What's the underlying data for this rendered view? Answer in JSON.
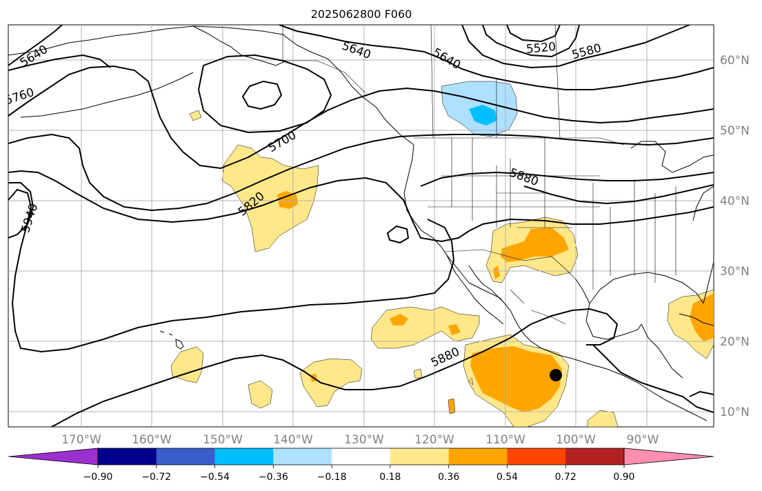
{
  "title": "2025062800 F060",
  "lon_ticks": [
    "170°W",
    "160°W",
    "150°W",
    "140°W",
    "130°W",
    "120°W",
    "110°W",
    "100°W",
    "90°W"
  ],
  "lat_ticks": [
    "60°N",
    "50°N",
    "40°N",
    "30°N",
    "20°N",
    "10°N"
  ],
  "contour_labels": [
    "5520",
    "5580",
    "5640",
    "5640",
    "5640",
    "5700",
    "5760",
    "5820",
    "5880",
    "5880",
    "5940"
  ],
  "colorbar": {
    "tick_labels": [
      "−0.90",
      "−0.72",
      "−0.54",
      "−0.36",
      "−0.18",
      "0.18",
      "0.36",
      "0.54",
      "0.72",
      "0.90"
    ],
    "colors": [
      "#9b30d0",
      "#00008b",
      "#3a5fcd",
      "#00bfff",
      "#aee0ff",
      "#ffffff",
      "#ffe88a",
      "#ffa500",
      "#ff4500",
      "#b22222",
      "#ff8fb0"
    ]
  },
  "colors": {
    "light_yellow": "#ffe88a",
    "orange": "#ffa500",
    "light_blue": "#aee0ff",
    "cyan": "#00bfff"
  },
  "marker": "black-dot"
}
